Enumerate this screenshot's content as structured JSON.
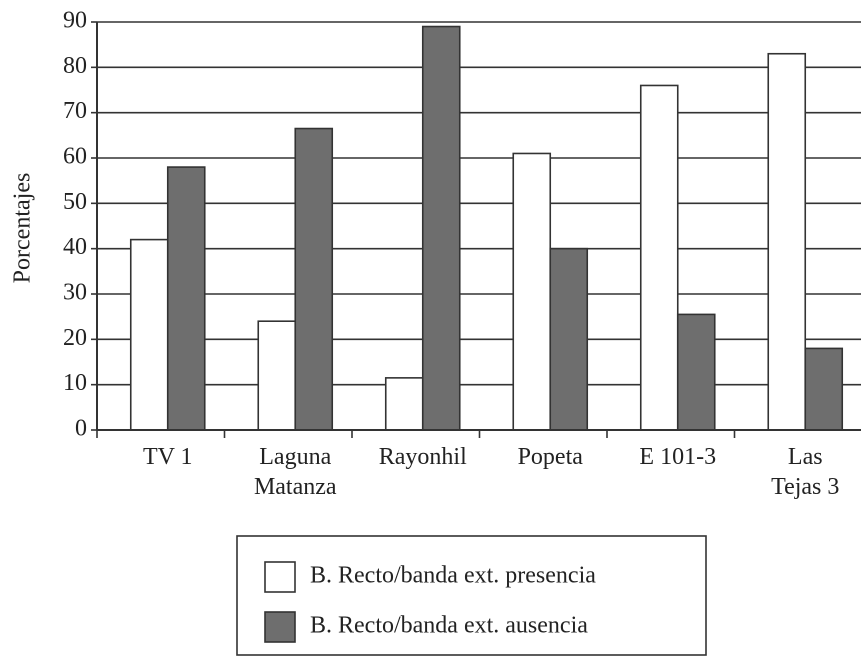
{
  "chart_data": {
    "type": "bar",
    "y_label": "Porcentajes",
    "categories": [
      "TV 1",
      "Laguna\nMatanza",
      "Rayonhil",
      "Popeta",
      "E 101-3",
      "Las\nTejas 3"
    ],
    "series": [
      {
        "name": "B. Recto/banda ext. presencia",
        "color": "#ffffff",
        "values": [
          42,
          24,
          11.5,
          61,
          76,
          83
        ]
      },
      {
        "name": "B. Recto/banda ext. ausencia",
        "color": "#6e6e6e",
        "values": [
          58,
          66.5,
          89,
          40,
          25.5,
          18
        ]
      }
    ],
    "ylim": [
      0,
      90
    ],
    "yticks": [
      0,
      10,
      20,
      30,
      40,
      50,
      60,
      70,
      80,
      90
    ],
    "grid": true
  }
}
